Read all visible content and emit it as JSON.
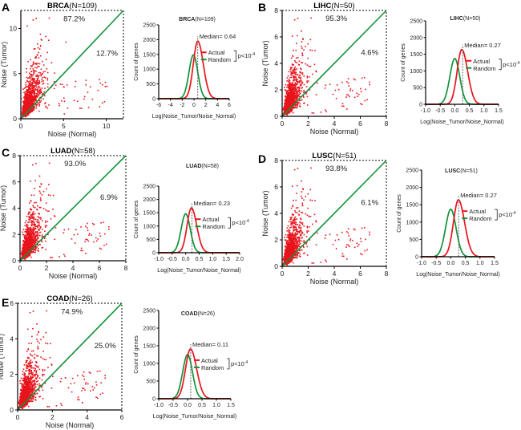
{
  "figure": {
    "panels": [
      "A",
      "B",
      "C",
      "D",
      "E"
    ]
  },
  "colors": {
    "actual": "#e8141c",
    "random": "#12923a",
    "diagonal": "#12923a",
    "points": "#e8141c"
  },
  "chart_data": [
    {
      "panel": "A",
      "type": "scatter",
      "title_bold": "BRCA",
      "title_rest": "(N=109)",
      "xlabel": "Noise (Normal)",
      "ylabel": "Noise (Tumor)",
      "xlim": [
        0,
        12
      ],
      "ylim": [
        0,
        12
      ],
      "xticks": [
        0,
        5,
        10
      ],
      "yticks": [
        0,
        5,
        10
      ],
      "above_pct": "87.2%",
      "below_pct": "12.7%",
      "diagonal": "y = x"
    },
    {
      "panel": "A",
      "type": "line",
      "title_bold": "BRCA",
      "title_rest": "(N=109)",
      "xlabel": "Log(Noise_Tumor/Noise_Normal)",
      "ylabel": "Count of genes",
      "xlim": [
        -6,
        6
      ],
      "ylim": [
        0,
        2500
      ],
      "xticks": [
        -6,
        -4,
        -2,
        0,
        2,
        4,
        6
      ],
      "yticks": [
        0,
        500,
        1000,
        1500,
        2000,
        2500
      ],
      "series": [
        {
          "name": "Actual",
          "mean": 0.64,
          "peak": 1950,
          "sd": 0.75
        },
        {
          "name": "Random",
          "mean": -0.1,
          "peak": 1480,
          "sd": 0.75
        }
      ],
      "median_label": "Median= 0.64",
      "median": 0.64,
      "pvalue_label": "p<10",
      "pvalue_exp": "-4"
    },
    {
      "panel": "B",
      "type": "scatter",
      "title_bold": "LIHC",
      "title_rest": "(N=50)",
      "xlabel": "Noise (Normal)",
      "ylabel": "Noise (Tumor)",
      "xlim": [
        0,
        8
      ],
      "ylim": [
        0,
        8
      ],
      "xticks": [
        0,
        2,
        4,
        6,
        8
      ],
      "yticks": [
        0,
        2,
        4,
        6,
        8
      ],
      "above_pct": "95.3%",
      "below_pct": "4.6%",
      "diagonal": "y = x"
    },
    {
      "panel": "B",
      "type": "line",
      "title_bold": "LIHC",
      "title_rest": "(N=50)",
      "xlabel": "Log(Noise_Tumor/Noise_Normal)",
      "ylabel": "Count of genes",
      "xlim": [
        -1.0,
        1.5
      ],
      "ylim": [
        0,
        2500
      ],
      "xticks": [
        -1.0,
        -0.5,
        0.0,
        0.5,
        1.0,
        1.5
      ],
      "yticks": [
        0,
        500,
        1000,
        1500,
        2000,
        2500
      ],
      "series": [
        {
          "name": "Actual",
          "mean": 0.24,
          "peak": 1640,
          "sd": 0.16
        },
        {
          "name": "Random",
          "mean": 0.0,
          "peak": 1370,
          "sd": 0.17
        }
      ],
      "median_label": "Median= 0.27",
      "median": 0.27,
      "pvalue_label": "p<10",
      "pvalue_exp": "-4"
    },
    {
      "panel": "C",
      "type": "scatter",
      "title_bold": "LUAD",
      "title_rest": "(N=58)",
      "xlabel": "Noise (Normal)",
      "ylabel": "Noise (Tumor)",
      "xlim": [
        0,
        8
      ],
      "ylim": [
        0,
        8
      ],
      "xticks": [
        0,
        2,
        4,
        6,
        8
      ],
      "yticks": [
        0,
        2,
        4,
        6,
        8
      ],
      "above_pct": "93.0%",
      "below_pct": "6.9%",
      "diagonal": "y = x"
    },
    {
      "panel": "C",
      "type": "line",
      "title_bold": "LUAD",
      "title_rest": "(N=58)",
      "xlabel": "Log(Noise_Tumor/Noise_Normal)",
      "ylabel": "Count of genes",
      "xlim": [
        -1.0,
        2.0
      ],
      "ylim": [
        0,
        2500
      ],
      "xticks": [
        -1.0,
        -0.5,
        0.0,
        0.5,
        1.0,
        1.5,
        2.0
      ],
      "yticks": [
        0,
        500,
        1000,
        1500,
        2000,
        2500
      ],
      "series": [
        {
          "name": "Actual",
          "mean": 0.21,
          "peak": 1680,
          "sd": 0.16
        },
        {
          "name": "Random",
          "mean": 0.0,
          "peak": 1460,
          "sd": 0.17
        }
      ],
      "median_label": "Median= 0.23",
      "median": 0.23,
      "pvalue_label": "p<10",
      "pvalue_exp": "-4"
    },
    {
      "panel": "D",
      "type": "scatter",
      "title_bold": "LUSC",
      "title_rest": "(N=51)",
      "xlabel": "Noise (Normal)",
      "ylabel": "Noise (Tumor)",
      "xlim": [
        0,
        8
      ],
      "ylim": [
        0,
        8
      ],
      "xticks": [
        0,
        2,
        4,
        6,
        8
      ],
      "yticks": [
        0,
        2,
        4,
        6,
        8
      ],
      "above_pct": "93.8%",
      "below_pct": "6.1%",
      "diagonal": "y = x"
    },
    {
      "panel": "D",
      "type": "line",
      "title_bold": "LUSC",
      "title_rest": "(N=51)",
      "xlabel": "Log(Noise_Tumor/Noise_Normal)",
      "ylabel": "Count of genes",
      "xlim": [
        -1.0,
        1.5
      ],
      "ylim": [
        0,
        2500
      ],
      "xticks": [
        -1.0,
        -0.5,
        0.0,
        0.5,
        1.0,
        1.5
      ],
      "yticks": [
        0,
        500,
        1000,
        1500,
        2000,
        2500
      ],
      "series": [
        {
          "name": "Actual",
          "mean": 0.26,
          "peak": 1640,
          "sd": 0.17
        },
        {
          "name": "Random",
          "mean": 0.0,
          "peak": 1370,
          "sd": 0.18
        }
      ],
      "median_label": "Median= 0.27",
      "median": 0.27,
      "pvalue_label": "p<10",
      "pvalue_exp": "-4"
    },
    {
      "panel": "E",
      "type": "scatter",
      "title_bold": "COAD",
      "title_rest": "(N=26)",
      "xlabel": "Noise (Normal)",
      "ylabel": "Noise (Tumor)",
      "xlim": [
        0,
        6
      ],
      "ylim": [
        0,
        6
      ],
      "xticks": [
        0,
        2,
        4,
        6
      ],
      "yticks": [
        0,
        2,
        4,
        6
      ],
      "above_pct": "74.9%",
      "below_pct": "25.0%",
      "diagonal": "y = x"
    },
    {
      "panel": "E",
      "type": "line",
      "title_bold": "COAD",
      "title_rest": "(N=26)",
      "xlabel": "Log(Noise_Tumor/Noise_Normal)",
      "ylabel": "Count of genes",
      "xlim": [
        -1.0,
        1.5
      ],
      "ylim": [
        0,
        2500
      ],
      "xticks": [
        -1.0,
        -0.5,
        0.0,
        0.5,
        1.0,
        1.5
      ],
      "yticks": [
        0,
        500,
        1000,
        1500,
        2000,
        2500
      ],
      "series": [
        {
          "name": "Actual",
          "mean": 0.1,
          "peak": 1410,
          "sd": 0.17
        },
        {
          "name": "Random",
          "mean": 0.0,
          "peak": 1250,
          "sd": 0.17
        }
      ],
      "median_label": "Median= 0.11",
      "median": 0.11,
      "pvalue_label": "p<10",
      "pvalue_exp": "-4"
    }
  ]
}
